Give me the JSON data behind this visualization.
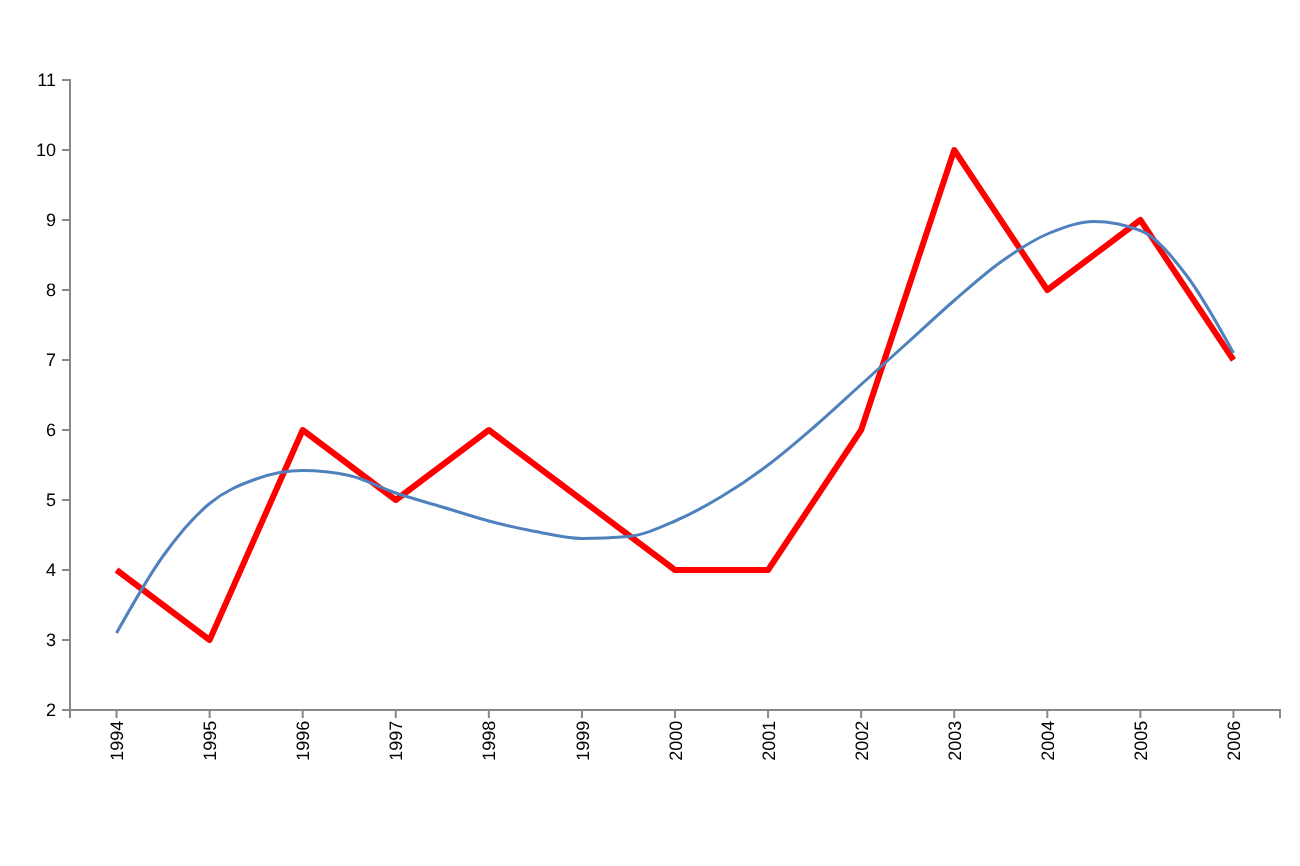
{
  "chart_data": {
    "type": "line",
    "x": [
      1994,
      1995,
      1996,
      1997,
      1998,
      1999,
      2000,
      2001,
      2002,
      2003,
      2004,
      2005,
      2006
    ],
    "xlim": [
      1993.5,
      2006.5
    ],
    "xticks": [
      1994,
      1995,
      1996,
      1997,
      1998,
      1999,
      2000,
      2001,
      2002,
      2003,
      2004,
      2005,
      2006
    ],
    "ylim": [
      2,
      11
    ],
    "yticks": [
      2,
      3,
      4,
      5,
      6,
      7,
      8,
      9,
      10,
      11
    ],
    "grid": false,
    "marker": "none",
    "series": [
      {
        "color": "#ff0000",
        "values": [
          4,
          3,
          6,
          5,
          6,
          5,
          4,
          4,
          6,
          10,
          8,
          9,
          7
        ]
      },
      {
        "type": "line",
        "color": "#4f81bd",
        "x": [
          1994,
          1994.5,
          1995,
          1995.5,
          1996,
          1996.5,
          1997,
          1997.5,
          1998,
          1998.5,
          1999,
          1999.5,
          2000,
          2000.5,
          2001,
          2001.5,
          2002,
          2002.5,
          2003,
          2003.5,
          2004,
          2004.5,
          2005,
          2005.5,
          2006
        ],
        "values": [
          3.1,
          4.2,
          4.95,
          5.3,
          5.42,
          5.35,
          5.1,
          4.9,
          4.7,
          4.55,
          4.45,
          4.48,
          4.7,
          5.05,
          5.5,
          6.05,
          6.65,
          7.25,
          7.85,
          8.4,
          8.8,
          8.98,
          8.85,
          8.2,
          7.1
        ]
      }
    ]
  }
}
